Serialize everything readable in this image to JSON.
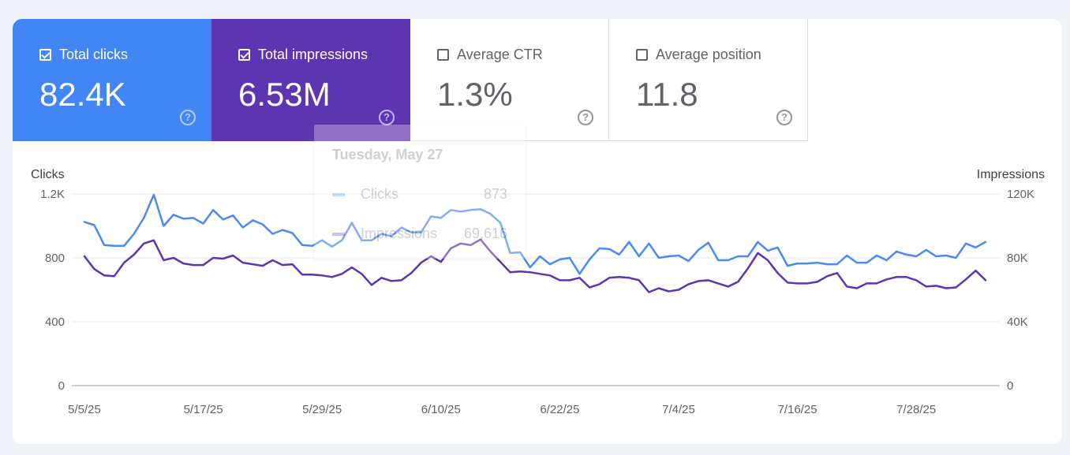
{
  "metrics": [
    {
      "label": "Total clicks",
      "value": "82.4K",
      "checked": true,
      "color": "#4285f4"
    },
    {
      "label": "Total impressions",
      "value": "6.53M",
      "checked": true,
      "color": "#5e35b1"
    },
    {
      "label": "Average CTR",
      "value": "1.3%",
      "checked": false
    },
    {
      "label": "Average position",
      "value": "11.8",
      "checked": false
    }
  ],
  "tooltip": {
    "date": "Tuesday, May 27",
    "rows": [
      {
        "label": "Clicks",
        "value": "873"
      },
      {
        "label": "Impressions",
        "value": "69,616"
      }
    ]
  },
  "chart_data": {
    "type": "line",
    "x_tick_labels": [
      "5/5/25",
      "5/17/25",
      "5/29/25",
      "6/10/25",
      "6/22/25",
      "7/4/25",
      "7/16/25",
      "7/28/25"
    ],
    "x_start": "5/5/25",
    "left_axis": {
      "title": "Clicks",
      "ticks": [
        "0",
        "400",
        "800",
        "1.2K"
      ],
      "range": [
        0,
        1200
      ]
    },
    "right_axis": {
      "title": "Impressions",
      "ticks": [
        "0",
        "40K",
        "80K",
        "120K"
      ],
      "range": [
        0,
        120000
      ]
    },
    "grid": true,
    "series": [
      {
        "name": "Clicks",
        "axis": "left",
        "color": "#4a8af4",
        "values": [
          1025,
          1005,
          880,
          875,
          875,
          950,
          1050,
          1195,
          1000,
          1070,
          1045,
          1050,
          1015,
          1100,
          1040,
          1065,
          990,
          1035,
          1010,
          950,
          975,
          955,
          880,
          875,
          910,
          870,
          910,
          1020,
          910,
          910,
          950,
          935,
          990,
          960,
          960,
          1060,
          1050,
          1100,
          1090,
          1100,
          1105,
          1075,
          1020,
          830,
          835,
          740,
          810,
          760,
          790,
          800,
          700,
          790,
          860,
          855,
          820,
          900,
          810,
          890,
          800,
          810,
          815,
          780,
          850,
          895,
          785,
          785,
          810,
          810,
          900,
          845,
          865,
          750,
          765,
          765,
          770,
          760,
          760,
          815,
          770,
          770,
          815,
          785,
          840,
          820,
          810,
          850,
          810,
          815,
          800,
          890,
          865,
          900
        ]
      },
      {
        "name": "Impressions",
        "axis": "right",
        "color": "#5e35b1",
        "values": [
          81000,
          73000,
          69000,
          68500,
          77000,
          82000,
          89000,
          91000,
          78500,
          80000,
          76500,
          75500,
          75500,
          80000,
          79500,
          81500,
          77000,
          76000,
          75000,
          78500,
          75500,
          76000,
          69500,
          69500,
          69000,
          68000,
          70000,
          74000,
          70000,
          63000,
          67500,
          65500,
          66000,
          70500,
          77000,
          81000,
          77500,
          86000,
          89000,
          88000,
          91500,
          84000,
          77500,
          71000,
          71500,
          71000,
          70000,
          69000,
          66000,
          66000,
          67500,
          61500,
          63500,
          67500,
          68000,
          67500,
          66000,
          58500,
          61000,
          59000,
          60000,
          63500,
          65500,
          66000,
          64000,
          62000,
          65000,
          73500,
          83000,
          78500,
          70500,
          64500,
          64000,
          64000,
          65000,
          68500,
          70500,
          62000,
          61000,
          64000,
          64000,
          66500,
          68000,
          68000,
          66000,
          62000,
          62500,
          61000,
          61500,
          66500,
          72000,
          66000
        ]
      }
    ]
  }
}
